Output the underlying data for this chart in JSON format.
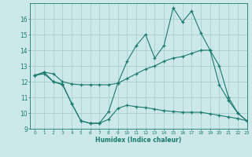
{
  "x": [
    0,
    1,
    2,
    3,
    4,
    5,
    6,
    7,
    8,
    9,
    10,
    11,
    12,
    13,
    14,
    15,
    16,
    17,
    18,
    19,
    20,
    21,
    22,
    23
  ],
  "line1_main": [
    12.4,
    12.6,
    12.5,
    12.0,
    11.85,
    11.8,
    11.8,
    11.8,
    11.8,
    11.9,
    12.2,
    12.5,
    12.8,
    13.0,
    13.3,
    13.5,
    13.6,
    13.8,
    14.0,
    14.0,
    13.0,
    11.0,
    10.0,
    9.5
  ],
  "line2_peak": [
    12.4,
    12.6,
    12.0,
    11.85,
    10.6,
    9.5,
    9.35,
    9.35,
    10.1,
    11.9,
    13.3,
    14.3,
    15.0,
    13.5,
    14.3,
    16.7,
    15.8,
    16.5,
    15.1,
    14.0,
    11.8,
    10.8,
    10.0,
    9.5
  ],
  "line3_low": [
    12.4,
    12.5,
    12.0,
    11.8,
    10.6,
    9.5,
    9.35,
    9.35,
    9.6,
    10.3,
    10.5,
    10.4,
    10.35,
    10.25,
    10.15,
    10.1,
    10.05,
    10.05,
    10.05,
    9.95,
    9.85,
    9.75,
    9.65,
    9.5
  ],
  "line_color": "#1a7a6e",
  "bg_color": "#cce8e8",
  "grid_color": "#aacfcf",
  "xlabel": "Humidex (Indice chaleur)",
  "ylim": [
    9,
    17
  ],
  "xlim": [
    -0.5,
    23
  ],
  "yticks": [
    9,
    10,
    11,
    12,
    13,
    14,
    15,
    16
  ],
  "xticks": [
    0,
    1,
    2,
    3,
    4,
    5,
    6,
    7,
    8,
    9,
    10,
    11,
    12,
    13,
    14,
    15,
    16,
    17,
    18,
    19,
    20,
    21,
    22,
    23
  ],
  "marker": "+",
  "linewidth": 0.8,
  "markersize": 3.5,
  "markeredgewidth": 0.9
}
